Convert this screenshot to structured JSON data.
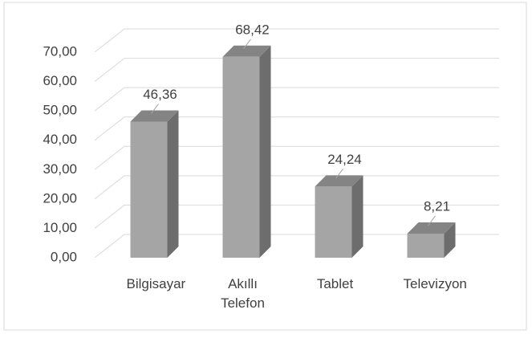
{
  "chart_data": {
    "type": "bar3d",
    "categories": [
      "Bilgisayar",
      "Akıllı Telefon",
      "Tablet",
      "Televizyon"
    ],
    "values": [
      46.36,
      68.42,
      24.24,
      8.21
    ],
    "value_labels": [
      "46,36",
      "68,42",
      "24,24",
      "8,21"
    ],
    "color": "#a5a5a5",
    "ylim": [
      0,
      70
    ],
    "yticks": [
      {
        "value": 0,
        "label": "0,00"
      },
      {
        "value": 10,
        "label": "10,00"
      },
      {
        "value": 20,
        "label": "20,00"
      },
      {
        "value": 30,
        "label": "30,00"
      },
      {
        "value": 40,
        "label": "40,00"
      },
      {
        "value": 50,
        "label": "50,00"
      },
      {
        "value": 60,
        "label": "60,00"
      },
      {
        "value": 70,
        "label": "70,00"
      }
    ],
    "grid": true
  }
}
